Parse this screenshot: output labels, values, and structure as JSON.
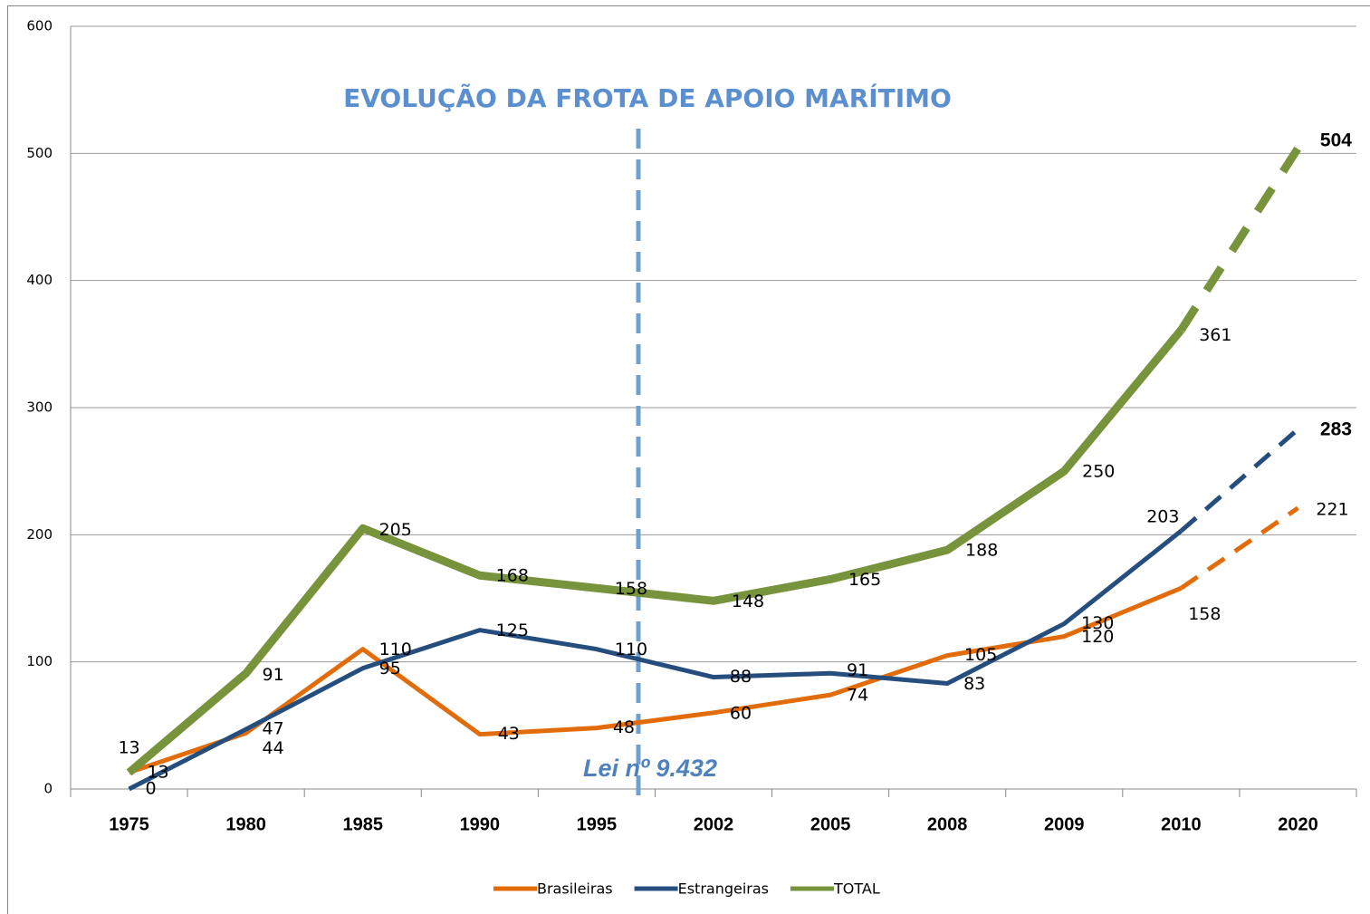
{
  "chart_data": {
    "type": "line",
    "title": "EVOLUÇÃO DA FROTA DE APOIO MARÍTIMO",
    "annotation": "Lei nº 9.432",
    "categories": [
      "1975",
      "1980",
      "1985",
      "1990",
      "1995",
      "2002",
      "2005",
      "2008",
      "2009",
      "2010",
      "2020"
    ],
    "series": [
      {
        "name": "Brasileiras",
        "color": "#e36c0a",
        "values": [
          13,
          44,
          110,
          43,
          48,
          60,
          74,
          105,
          120,
          158,
          221
        ]
      },
      {
        "name": "Estrangeiras",
        "color": "#254e7f",
        "values": [
          0,
          47,
          95,
          125,
          110,
          88,
          91,
          83,
          130,
          203,
          283
        ]
      },
      {
        "name": "TOTAL",
        "color": "#77933c",
        "values": [
          13,
          91,
          205,
          168,
          158,
          148,
          165,
          188,
          250,
          361,
          504
        ]
      }
    ],
    "ylim": [
      0,
      600
    ],
    "yticks": [
      0,
      100,
      200,
      300,
      400,
      500,
      600
    ],
    "grid": true,
    "dashed_last_segment": true,
    "legend": "bottom"
  }
}
